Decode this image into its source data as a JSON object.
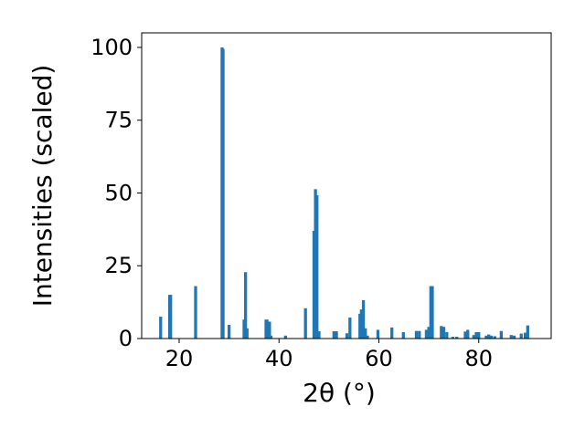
{
  "chart_data": {
    "type": "bar",
    "xlabel": "2θ (°)",
    "ylabel": "Intensities (scaled)",
    "xlim": [
      12.5,
      94.5
    ],
    "ylim": [
      0,
      105
    ],
    "x_ticks": [
      20,
      40,
      60,
      80
    ],
    "y_ticks": [
      0,
      25,
      50,
      75,
      100
    ],
    "grid": false,
    "bar_color": "#1f77b4",
    "bar_width": 0.6,
    "x": [
      16.3,
      18.1,
      18.3,
      23.3,
      28.6,
      28.8,
      30.0,
      33.0,
      33.3,
      33.6,
      37.4,
      37.6,
      38.1,
      38.4,
      41.3,
      45.3,
      47.0,
      47.3,
      47.6,
      48.0,
      51.0,
      51.5,
      53.6,
      54.2,
      56.2,
      56.5,
      56.9,
      57.3,
      57.7,
      59.8,
      62.6,
      64.9,
      67.5,
      68.1,
      69.5,
      70.0,
      70.4,
      70.7,
      72.5,
      73.0,
      73.6,
      74.8,
      75.6,
      77.3,
      77.8,
      79.0,
      79.5,
      80.0,
      81.5,
      82.0,
      82.5,
      83.2,
      84.5,
      86.5,
      87.1,
      88.5,
      89.3,
      89.8
    ],
    "values": [
      7.5,
      15.0,
      15.0,
      18.0,
      100.0,
      99.5,
      4.7,
      6.5,
      22.8,
      3.5,
      6.5,
      6.5,
      5.8,
      1.0,
      1.0,
      10.4,
      37.0,
      51.3,
      49.2,
      2.5,
      2.5,
      2.5,
      1.8,
      7.2,
      8.5,
      10.0,
      13.2,
      3.5,
      1.0,
      3.0,
      3.8,
      2.2,
      2.6,
      2.6,
      3.0,
      4.0,
      18.0,
      18.0,
      4.3,
      4.0,
      2.2,
      0.6,
      0.6,
      2.4,
      3.0,
      1.2,
      2.2,
      2.2,
      1.0,
      1.4,
      1.0,
      0.8,
      2.6,
      1.2,
      1.0,
      1.7,
      2.0,
      4.5
    ]
  }
}
